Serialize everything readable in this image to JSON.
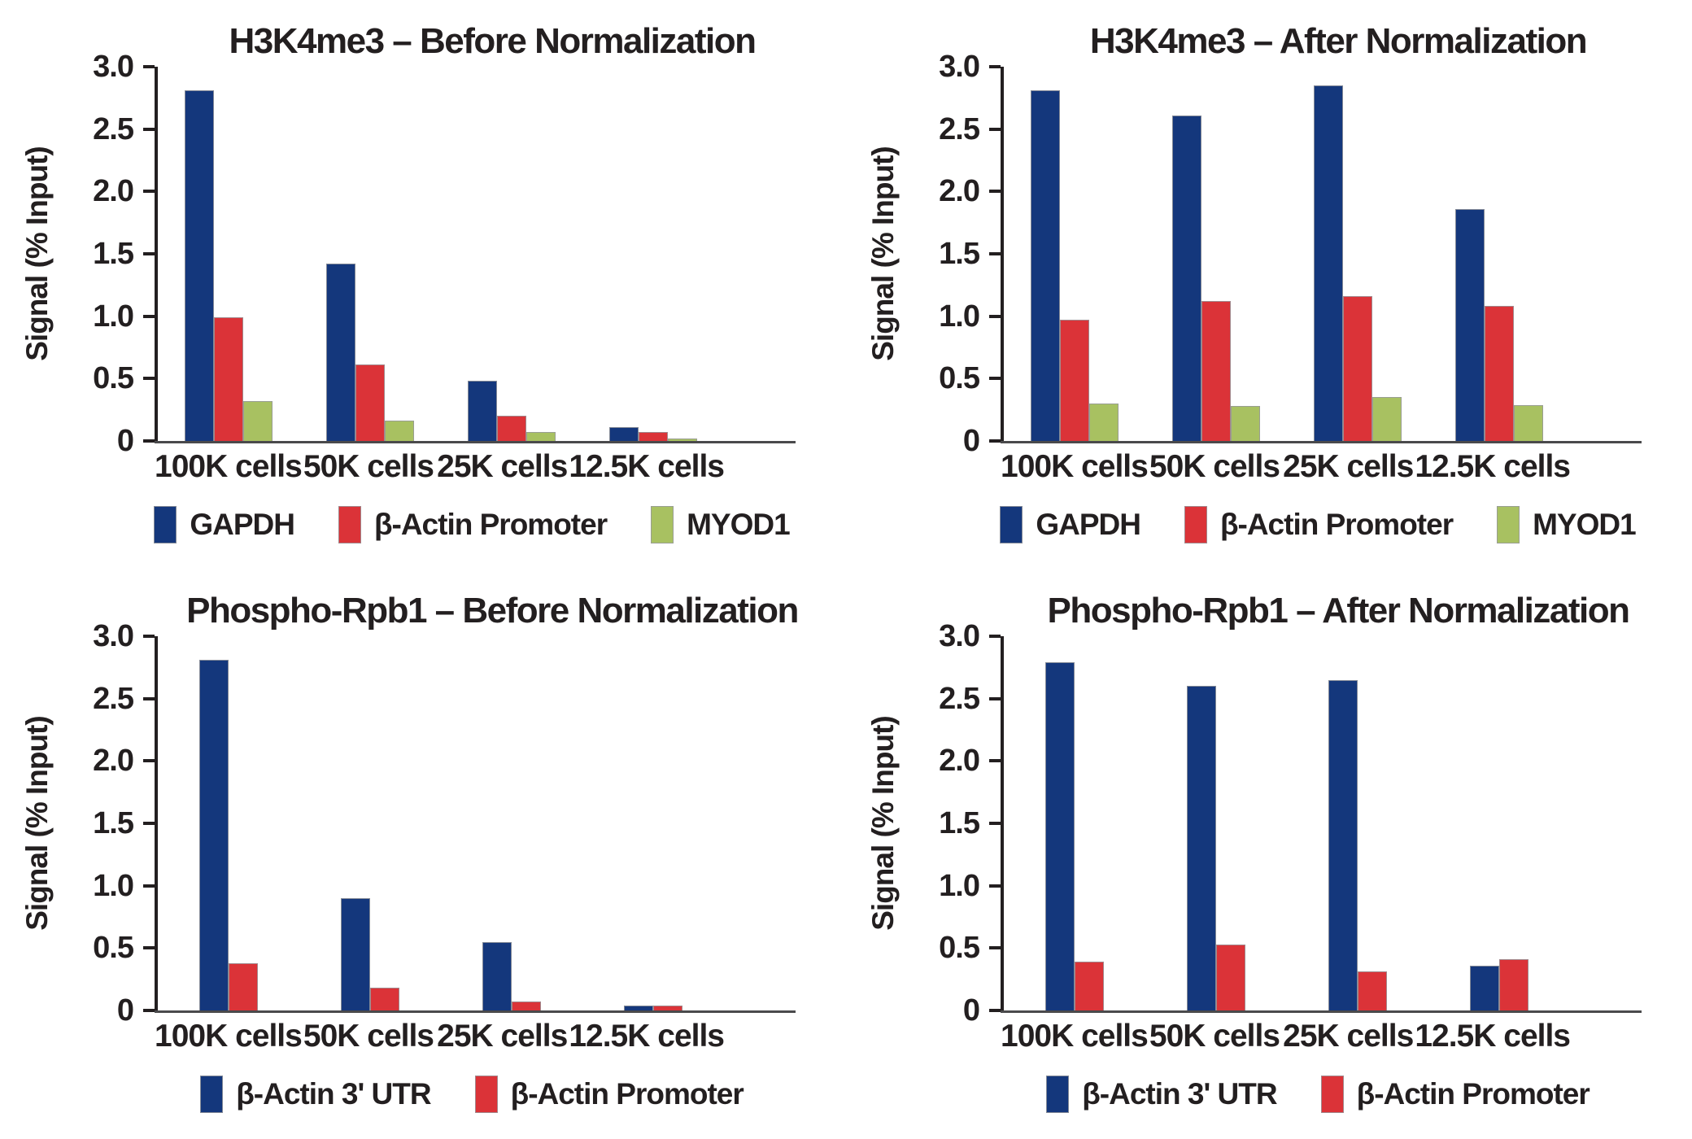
{
  "figure": {
    "background": "#ffffff"
  },
  "colors": {
    "navy": "#14377C",
    "red": "#DB3338",
    "green": "#A8C161",
    "axis": "#231F20",
    "baseline": "#4A4A4C"
  },
  "chart_data": [
    {
      "type": "bar",
      "title": "H3K4me3 – Before Normalization",
      "ylabel": "Signal (% Input)",
      "xlabel": "",
      "ylim": [
        0,
        3.0
      ],
      "yticks": [
        0,
        0.5,
        1.0,
        1.5,
        2.0,
        2.5,
        3.0
      ],
      "ytick_labels": [
        "0",
        "0.5",
        "1.0",
        "1.5",
        "2.0",
        "2.5",
        "3.0"
      ],
      "grid": false,
      "legend_position": "bottom",
      "categories": [
        "100K cells",
        "50K cells",
        "25K cells",
        "12.5K cells"
      ],
      "series": [
        {
          "name": "GAPDH",
          "color": "navy",
          "values": [
            2.81,
            1.42,
            0.48,
            0.11
          ]
        },
        {
          "name": "β-Actin Promoter",
          "color": "red",
          "values": [
            0.99,
            0.61,
            0.2,
            0.07
          ]
        },
        {
          "name": "MYOD1",
          "color": "green",
          "values": [
            0.32,
            0.16,
            0.07,
            0.02
          ]
        }
      ]
    },
    {
      "type": "bar",
      "title": "H3K4me3 – After Normalization",
      "ylabel": "Signal (% Input)",
      "xlabel": "",
      "ylim": [
        0,
        3.0
      ],
      "yticks": [
        0,
        0.5,
        1.0,
        1.5,
        2.0,
        2.5,
        3.0
      ],
      "ytick_labels": [
        "0",
        "0.5",
        "1.0",
        "1.5",
        "2.0",
        "2.5",
        "3.0"
      ],
      "grid": false,
      "legend_position": "bottom",
      "categories": [
        "100K cells",
        "50K cells",
        "25K cells",
        "12.5K cells"
      ],
      "series": [
        {
          "name": "GAPDH",
          "color": "navy",
          "values": [
            2.81,
            2.61,
            2.85,
            1.86
          ]
        },
        {
          "name": "β-Actin Promoter",
          "color": "red",
          "values": [
            0.97,
            1.12,
            1.16,
            1.08
          ]
        },
        {
          "name": "MYOD1",
          "color": "green",
          "values": [
            0.3,
            0.28,
            0.35,
            0.29
          ]
        }
      ]
    },
    {
      "type": "bar",
      "title": "Phospho-Rpb1 – Before Normalization",
      "ylabel": "Signal (% Input)",
      "xlabel": "",
      "ylim": [
        0,
        3.0
      ],
      "yticks": [
        0,
        0.5,
        1.0,
        1.5,
        2.0,
        2.5,
        3.0
      ],
      "ytick_labels": [
        "0",
        "0.5",
        "1.0",
        "1.5",
        "2.0",
        "2.5",
        "3.0"
      ],
      "grid": false,
      "legend_position": "bottom",
      "categories": [
        "100K cells",
        "50K cells",
        "25K cells",
        "12.5K cells"
      ],
      "series": [
        {
          "name": "β-Actin 3' UTR",
          "color": "navy",
          "values": [
            2.81,
            0.9,
            0.55,
            0.04
          ]
        },
        {
          "name": "β-Actin Promoter",
          "color": "red",
          "values": [
            0.38,
            0.18,
            0.07,
            0.04
          ]
        }
      ]
    },
    {
      "type": "bar",
      "title": "Phospho-Rpb1 – After Normalization",
      "ylabel": "Signal (% Input)",
      "xlabel": "",
      "ylim": [
        0,
        3.0
      ],
      "yticks": [
        0,
        0.5,
        1.0,
        1.5,
        2.0,
        2.5,
        3.0
      ],
      "ytick_labels": [
        "0",
        "0.5",
        "1.0",
        "1.5",
        "2.0",
        "2.5",
        "3.0"
      ],
      "grid": false,
      "legend_position": "bottom",
      "categories": [
        "100K cells",
        "50K cells",
        "25K cells",
        "12.5K cells"
      ],
      "series": [
        {
          "name": "β-Actin 3' UTR",
          "color": "navy",
          "values": [
            2.79,
            2.6,
            2.65,
            0.36
          ]
        },
        {
          "name": "β-Actin Promoter",
          "color": "red",
          "values": [
            0.39,
            0.53,
            0.31,
            0.41
          ]
        }
      ]
    }
  ]
}
